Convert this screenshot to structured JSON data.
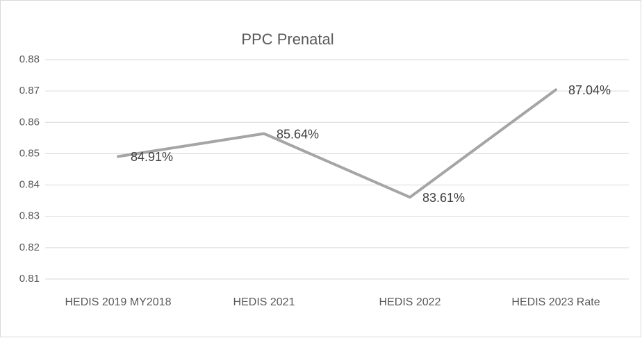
{
  "chart_data": {
    "type": "line",
    "title": "PPC Prenatal",
    "categories": [
      "HEDIS 2019 MY2018",
      "HEDIS 2021",
      "HEDIS 2022",
      "HEDIS 2023 Rate"
    ],
    "series": [
      {
        "name": "Rate",
        "color": "#a5a5a5",
        "values": [
          0.8491,
          0.8564,
          0.8361,
          0.8704
        ],
        "value_labels": [
          "84.91%",
          "85.64%",
          "83.61%",
          "87.04%"
        ]
      }
    ],
    "ylim": [
      0.81,
      0.88
    ],
    "yticks": [
      0.81,
      0.82,
      0.83,
      0.84,
      0.85,
      0.86,
      0.87,
      0.88
    ],
    "grid": true
  }
}
